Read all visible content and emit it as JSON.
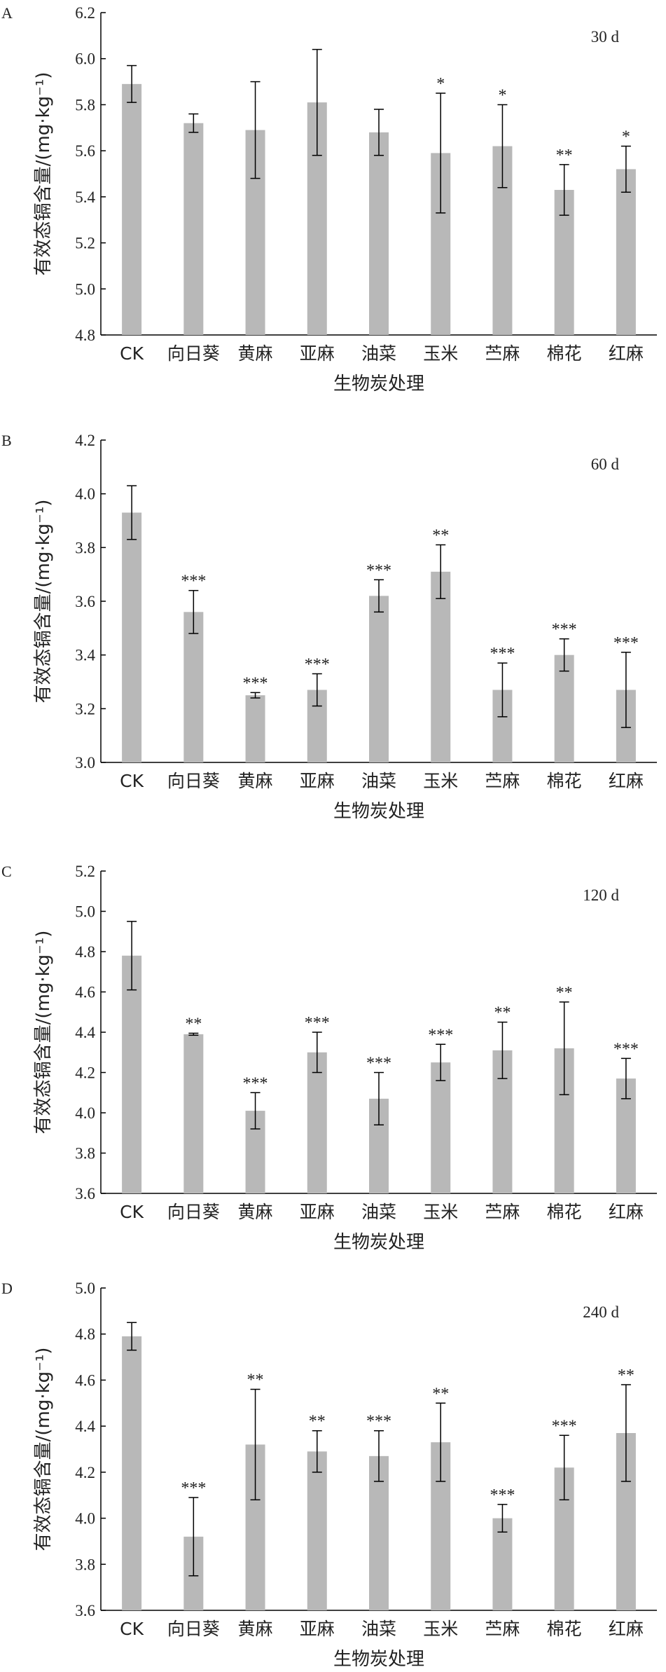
{
  "chart_data": [
    {
      "type": "bar",
      "panel_label": "A",
      "period": "30 d",
      "xlabel": "生物炭处理",
      "ylabel": "有效态镉含量/(mg·kg⁻¹)",
      "ylim": [
        4.8,
        6.2
      ],
      "yticks": [
        "4.8",
        "5.0",
        "5.2",
        "5.4",
        "5.6",
        "5.8",
        "6.0",
        "6.2"
      ],
      "categories": [
        "CK",
        "向日葵",
        "黄麻",
        "亚麻",
        "油菜",
        "玉米",
        "苎麻",
        "棉花",
        "红麻"
      ],
      "values": [
        5.89,
        5.72,
        5.69,
        5.81,
        5.68,
        5.59,
        5.62,
        5.43,
        5.52
      ],
      "errors": [
        0.08,
        0.04,
        0.21,
        0.23,
        0.1,
        0.26,
        0.18,
        0.11,
        0.1
      ],
      "significance": [
        "",
        "",
        "",
        "",
        "",
        "*",
        "*",
        "**",
        "*"
      ],
      "color": "#b8b8b8"
    },
    {
      "type": "bar",
      "panel_label": "B",
      "period": "60 d",
      "xlabel": "生物炭处理",
      "ylabel": "有效态镉含量/(mg·kg⁻¹)",
      "ylim": [
        3.0,
        4.2
      ],
      "yticks": [
        "3.0",
        "3.2",
        "3.4",
        "3.6",
        "3.8",
        "4.0",
        "4.2"
      ],
      "categories": [
        "CK",
        "向日葵",
        "黄麻",
        "亚麻",
        "油菜",
        "玉米",
        "苎麻",
        "棉花",
        "红麻"
      ],
      "values": [
        3.93,
        3.56,
        3.25,
        3.27,
        3.62,
        3.71,
        3.27,
        3.4,
        3.27
      ],
      "errors": [
        0.1,
        0.08,
        0.01,
        0.06,
        0.06,
        0.1,
        0.1,
        0.06,
        0.14
      ],
      "significance": [
        "",
        "***",
        "***",
        "***",
        "***",
        "**",
        "***",
        "***",
        "***"
      ],
      "color": "#b8b8b8"
    },
    {
      "type": "bar",
      "panel_label": "C",
      "period": "120 d",
      "xlabel": "生物炭处理",
      "ylabel": "有效态镉含量/(mg·kg⁻¹)",
      "ylim": [
        3.6,
        5.2
      ],
      "yticks": [
        "3.6",
        "3.8",
        "4.0",
        "4.2",
        "4.4",
        "4.6",
        "4.8",
        "5.0",
        "5.2"
      ],
      "categories": [
        "CK",
        "向日葵",
        "黄麻",
        "亚麻",
        "油菜",
        "玉米",
        "苎麻",
        "棉花",
        "红麻"
      ],
      "values": [
        4.78,
        4.39,
        4.01,
        4.3,
        4.07,
        4.25,
        4.31,
        4.32,
        4.17
      ],
      "errors": [
        0.17,
        0.005,
        0.09,
        0.1,
        0.13,
        0.09,
        0.14,
        0.23,
        0.1
      ],
      "significance": [
        "",
        "**",
        "***",
        "***",
        "***",
        "***",
        "**",
        "**",
        "***"
      ],
      "color": "#b8b8b8"
    },
    {
      "type": "bar",
      "panel_label": "D",
      "period": "240 d",
      "xlabel": "生物炭处理",
      "ylabel": "有效态镉含量/(mg·kg⁻¹)",
      "ylim": [
        3.6,
        5.0
      ],
      "yticks": [
        "3.6",
        "3.8",
        "4.0",
        "4.2",
        "4.4",
        "4.6",
        "4.8",
        "5.0"
      ],
      "categories": [
        "CK",
        "向日葵",
        "黄麻",
        "亚麻",
        "油菜",
        "玉米",
        "苎麻",
        "棉花",
        "红麻"
      ],
      "values": [
        4.79,
        3.92,
        4.32,
        4.29,
        4.27,
        4.33,
        4.0,
        4.22,
        4.37
      ],
      "errors": [
        0.06,
        0.17,
        0.24,
        0.09,
        0.11,
        0.17,
        0.06,
        0.14,
        0.21
      ],
      "significance": [
        "",
        "***",
        "**",
        "**",
        "***",
        "**",
        "***",
        "***",
        "**"
      ],
      "color": "#b8b8b8"
    }
  ]
}
